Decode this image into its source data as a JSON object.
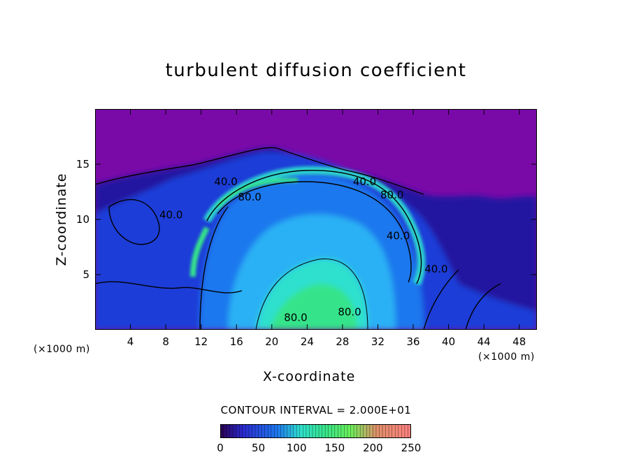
{
  "chart_data": {
    "type": "heatmap",
    "title": "turbulent diffusion coefficient",
    "xlabel": "X-coordinate",
    "ylabel": "Z-coordinate",
    "x_unit": "(×1000 m)",
    "y_unit": "(×1000 m)",
    "xlim": [
      0,
      50
    ],
    "ylim": [
      0,
      20
    ],
    "x_ticks": [
      "4",
      "8",
      "12",
      "16",
      "20",
      "24",
      "28",
      "32",
      "36",
      "40",
      "44",
      "48"
    ],
    "y_ticks": [
      "5",
      "10",
      "15"
    ],
    "contour_interval_text": "CONTOUR INTERVAL = 2.000E+01",
    "contour_labels": [
      {
        "text": "40.0",
        "x": 14.8,
        "y": 13.1
      },
      {
        "text": "80.0",
        "x": 17.5,
        "y": 11.7
      },
      {
        "text": "40.0",
        "x": 8.6,
        "y": 10.1
      },
      {
        "text": "40.0",
        "x": 30.5,
        "y": 13.1
      },
      {
        "text": "80.0",
        "x": 33.6,
        "y": 11.9
      },
      {
        "text": "40.0",
        "x": 34.3,
        "y": 8.2
      },
      {
        "text": "40.0",
        "x": 38.6,
        "y": 5.2
      },
      {
        "text": "80.0",
        "x": 22.7,
        "y": 0.8
      },
      {
        "text": "80.0",
        "x": 28.8,
        "y": 1.3
      }
    ],
    "colorbar": {
      "min": 0,
      "max": 250,
      "ticks": [
        "0",
        "50",
        "100",
        "150",
        "200",
        "250"
      ]
    },
    "colors": {
      "background": "#7a0aa8",
      "c1": "#2414a0",
      "c2": "#1e3ed8",
      "c3": "#1e78ee",
      "c4": "#2cb0f4",
      "c5": "#2fe0ce",
      "c6": "#36e48a",
      "c7": "#6af05a"
    }
  }
}
